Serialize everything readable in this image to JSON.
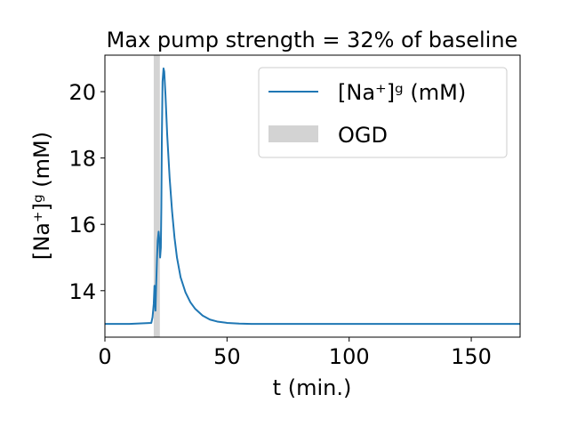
{
  "chart_data": {
    "type": "line",
    "title": "Max pump strength = 32% of baseline",
    "xlabel": "t (min.)",
    "ylabel": "[Na⁺]ᵍ (mM)",
    "xlim": [
      0,
      170
    ],
    "ylim": [
      12.6,
      21.1
    ],
    "x_ticks": [
      0,
      50,
      100,
      150
    ],
    "y_ticks": [
      14,
      16,
      18,
      20
    ],
    "grid": false,
    "legend_position": "top-right",
    "series": [
      {
        "name": "[Na⁺]ᵍ (mM)",
        "color": "#1f77b4",
        "x": [
          0,
          10,
          19.0,
          19.5,
          20.0,
          20.3,
          20.7,
          21.0,
          21.3,
          21.6,
          22.0,
          22.3,
          22.6,
          22.9,
          23.1,
          23.3,
          23.6,
          24.0,
          24.3,
          24.8,
          25.5,
          26.5,
          27.5,
          28.5,
          29.5,
          31,
          33,
          35,
          37,
          40,
          43,
          46,
          50,
          55,
          60,
          70,
          80,
          100,
          130,
          170
        ],
        "y": [
          13.0,
          13.0,
          13.03,
          13.2,
          13.6,
          14.15,
          13.4,
          14.2,
          14.9,
          15.5,
          15.78,
          15.5,
          15.0,
          15.3,
          16.5,
          18.5,
          20.3,
          20.7,
          20.6,
          19.9,
          18.7,
          17.4,
          16.4,
          15.6,
          15.0,
          14.4,
          13.95,
          13.65,
          13.45,
          13.25,
          13.13,
          13.07,
          13.03,
          13.01,
          13.0,
          13.0,
          13.0,
          13.0,
          13.0,
          13.0
        ]
      }
    ],
    "shaded_regions": [
      {
        "name": "OGD",
        "x_start": 20,
        "x_end": 22.5,
        "color": "#d3d3d3"
      }
    ]
  }
}
